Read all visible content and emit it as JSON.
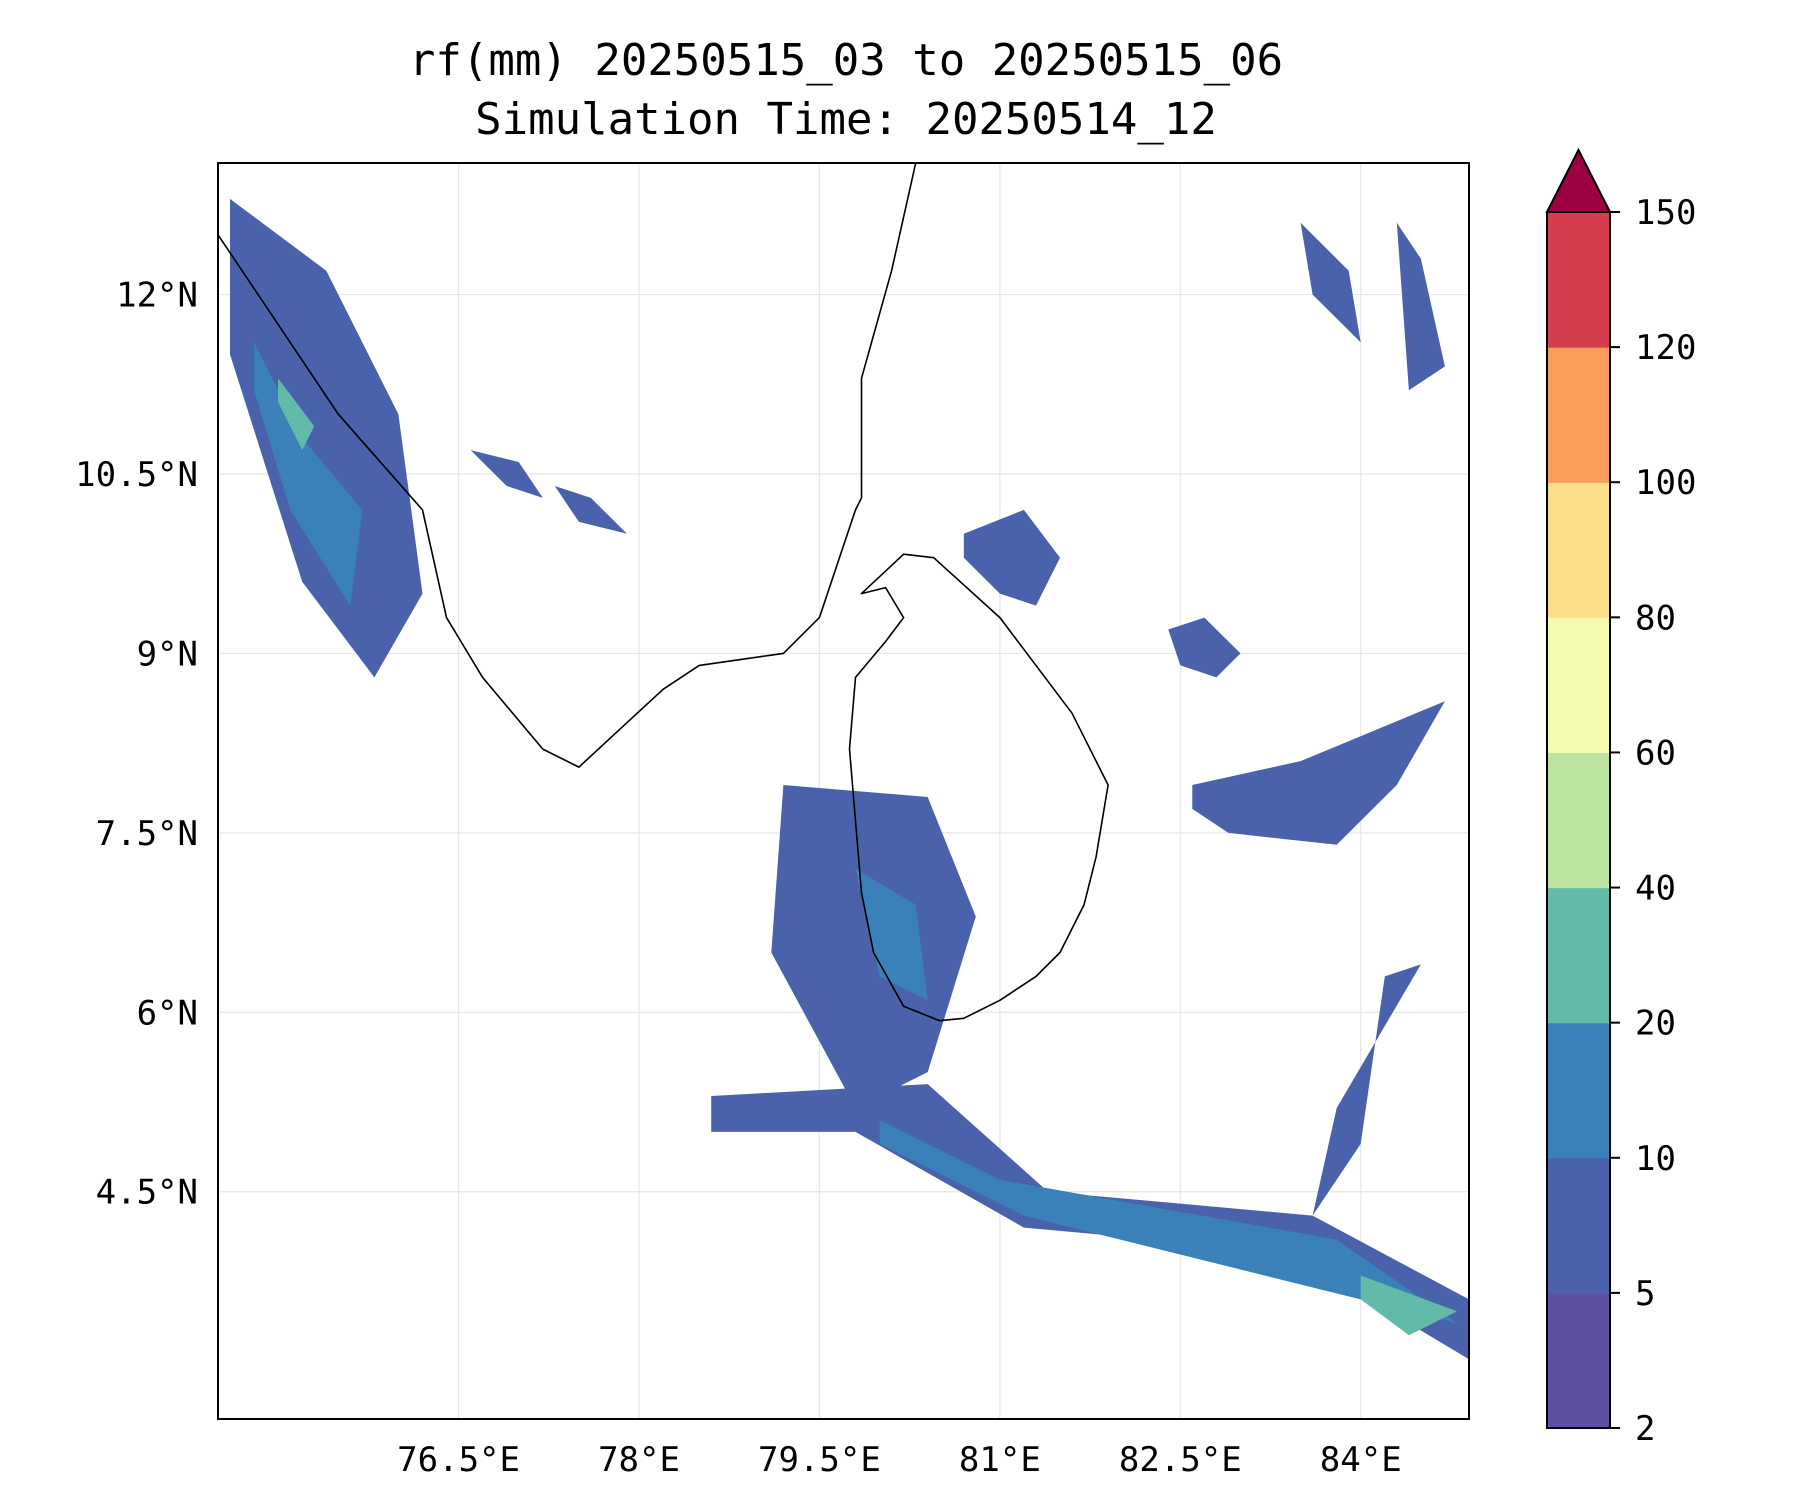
{
  "title": {
    "line1": "rf(mm) 20250515_03 to 20250515_06",
    "line2": "Simulation Time: 20250514_12"
  },
  "chart_data": {
    "type": "heatmap",
    "variable": "rf(mm)",
    "xlim": [
      74.5,
      84.9
    ],
    "ylim": [
      2.6,
      13.1
    ],
    "x_ticks": [
      76.5,
      78,
      79.5,
      81,
      82.5,
      84
    ],
    "x_tick_labels": [
      "76.5°E",
      "78°E",
      "79.5°E",
      "81°E",
      "82.5°E",
      "84°E"
    ],
    "y_ticks": [
      12,
      10.5,
      9,
      7.5,
      6,
      4.5
    ],
    "y_tick_labels": [
      "12°N",
      "10.5°N",
      "9°N",
      "7.5°N",
      "6°N",
      "4.5°N"
    ],
    "grid": true,
    "colorbar": {
      "levels": [
        2,
        5,
        10,
        20,
        40,
        60,
        80,
        100,
        120,
        150
      ],
      "tick_labels": [
        "2",
        "5",
        "10",
        "20",
        "40",
        "60",
        "80",
        "100",
        "120",
        "150"
      ],
      "colors": [
        "#5e4fa2",
        "#4a62ab",
        "#3a80b9",
        "#62bba9",
        "#bde3a0",
        "#f3f9ad",
        "#fbde8a",
        "#f99e5c",
        "#d63e50"
      ],
      "extend_color": "#9e0142",
      "extend": "max"
    },
    "rain_features": [
      {
        "lon": [
          74.6,
          75.4,
          76.0,
          76.2,
          75.8,
          75.2,
          74.6
        ],
        "lat": [
          12.8,
          12.2,
          11.0,
          9.5,
          8.8,
          9.6,
          11.5
        ],
        "level": 5
      },
      {
        "lon": [
          74.8,
          75.2,
          75.7,
          75.6,
          75.1,
          74.8
        ],
        "lat": [
          11.6,
          10.8,
          10.2,
          9.4,
          10.2,
          11.2
        ],
        "level": 10
      },
      {
        "lon": [
          75.0,
          75.3,
          75.2,
          75.0
        ],
        "lat": [
          11.3,
          10.9,
          10.7,
          11.1
        ],
        "level": 20
      },
      {
        "lon": [
          79.2,
          80.4,
          80.8,
          80.4,
          79.8,
          79.1
        ],
        "lat": [
          7.9,
          7.8,
          6.8,
          5.5,
          5.2,
          6.5
        ],
        "level": 5
      },
      {
        "lon": [
          79.8,
          80.3,
          80.4,
          80.0
        ],
        "lat": [
          7.2,
          6.9,
          6.1,
          6.3
        ],
        "level": 10
      },
      {
        "lon": [
          78.6,
          80.4,
          81.4,
          83.6,
          84.9,
          84.9,
          83.4,
          81.2,
          79.8,
          78.6
        ],
        "lat": [
          5.3,
          5.4,
          4.5,
          4.3,
          3.6,
          3.1,
          4.0,
          4.2,
          5.0,
          5.0
        ],
        "level": 5
      },
      {
        "lon": [
          80.0,
          81.0,
          83.8,
          84.8,
          84.0,
          81.2,
          80.0
        ],
        "lat": [
          5.1,
          4.6,
          4.1,
          3.4,
          3.6,
          4.3,
          4.9
        ],
        "level": 10
      },
      {
        "lon": [
          84.0,
          84.8,
          84.4,
          84.0
        ],
        "lat": [
          3.8,
          3.5,
          3.3,
          3.6
        ],
        "level": 20
      },
      {
        "lon": [
          82.6,
          83.5,
          84.7,
          84.3,
          83.8,
          82.9,
          82.6
        ],
        "lat": [
          7.9,
          8.1,
          8.6,
          7.9,
          7.4,
          7.5,
          7.7
        ],
        "level": 5
      },
      {
        "lon": [
          83.8,
          84.5,
          84.2,
          84.0,
          83.6
        ],
        "lat": [
          5.2,
          6.4,
          6.3,
          4.9,
          4.3
        ],
        "level": 5
      },
      {
        "lon": [
          80.7,
          81.2,
          81.5,
          81.3,
          81.0,
          80.7
        ],
        "lat": [
          10.0,
          10.2,
          9.8,
          9.4,
          9.5,
          9.8
        ],
        "level": 5
      },
      {
        "lon": [
          82.4,
          82.7,
          83.0,
          82.8,
          82.5
        ],
        "lat": [
          9.2,
          9.3,
          9.0,
          8.8,
          8.9
        ],
        "level": 5
      },
      {
        "lon": [
          83.5,
          83.9,
          84.0,
          83.6
        ],
        "lat": [
          12.6,
          12.2,
          11.6,
          12.0
        ],
        "level": 5
      },
      {
        "lon": [
          84.3,
          84.5,
          84.7,
          84.4
        ],
        "lat": [
          12.6,
          12.3,
          11.4,
          11.2
        ],
        "level": 5
      },
      {
        "lon": [
          76.6,
          77.0,
          77.2,
          76.9
        ],
        "lat": [
          10.7,
          10.6,
          10.3,
          10.4
        ],
        "level": 5
      },
      {
        "lon": [
          77.3,
          77.6,
          77.9,
          77.5
        ],
        "lat": [
          10.4,
          10.3,
          10.0,
          10.1
        ],
        "level": 5
      }
    ]
  },
  "coastline": {
    "india_lon": [
      74.5,
      75.5,
      76.2,
      76.4,
      76.7,
      77.2,
      77.5,
      78.2,
      78.5,
      79.2,
      79.5,
      79.8,
      79.85,
      79.85,
      80.1,
      80.3
    ],
    "india_lat": [
      12.5,
      11.0,
      10.2,
      9.3,
      8.8,
      8.2,
      8.05,
      8.7,
      8.9,
      9.0,
      9.3,
      10.2,
      10.3,
      11.3,
      12.2,
      13.1
    ],
    "srilanka_lon": [
      79.85,
      80.2,
      80.45,
      81.0,
      81.6,
      81.9,
      81.8,
      81.7,
      81.5,
      81.3,
      81.0,
      80.7,
      80.5,
      80.2,
      79.95,
      79.85,
      79.8,
      79.75,
      79.8,
      80.05,
      80.2,
      80.05,
      79.85
    ],
    "srilanka_lat": [
      9.5,
      9.83,
      9.8,
      9.3,
      8.5,
      7.9,
      7.3,
      6.9,
      6.5,
      6.3,
      6.1,
      5.95,
      5.93,
      6.05,
      6.5,
      7.0,
      7.6,
      8.2,
      8.8,
      9.1,
      9.3,
      9.55,
      9.5
    ]
  }
}
